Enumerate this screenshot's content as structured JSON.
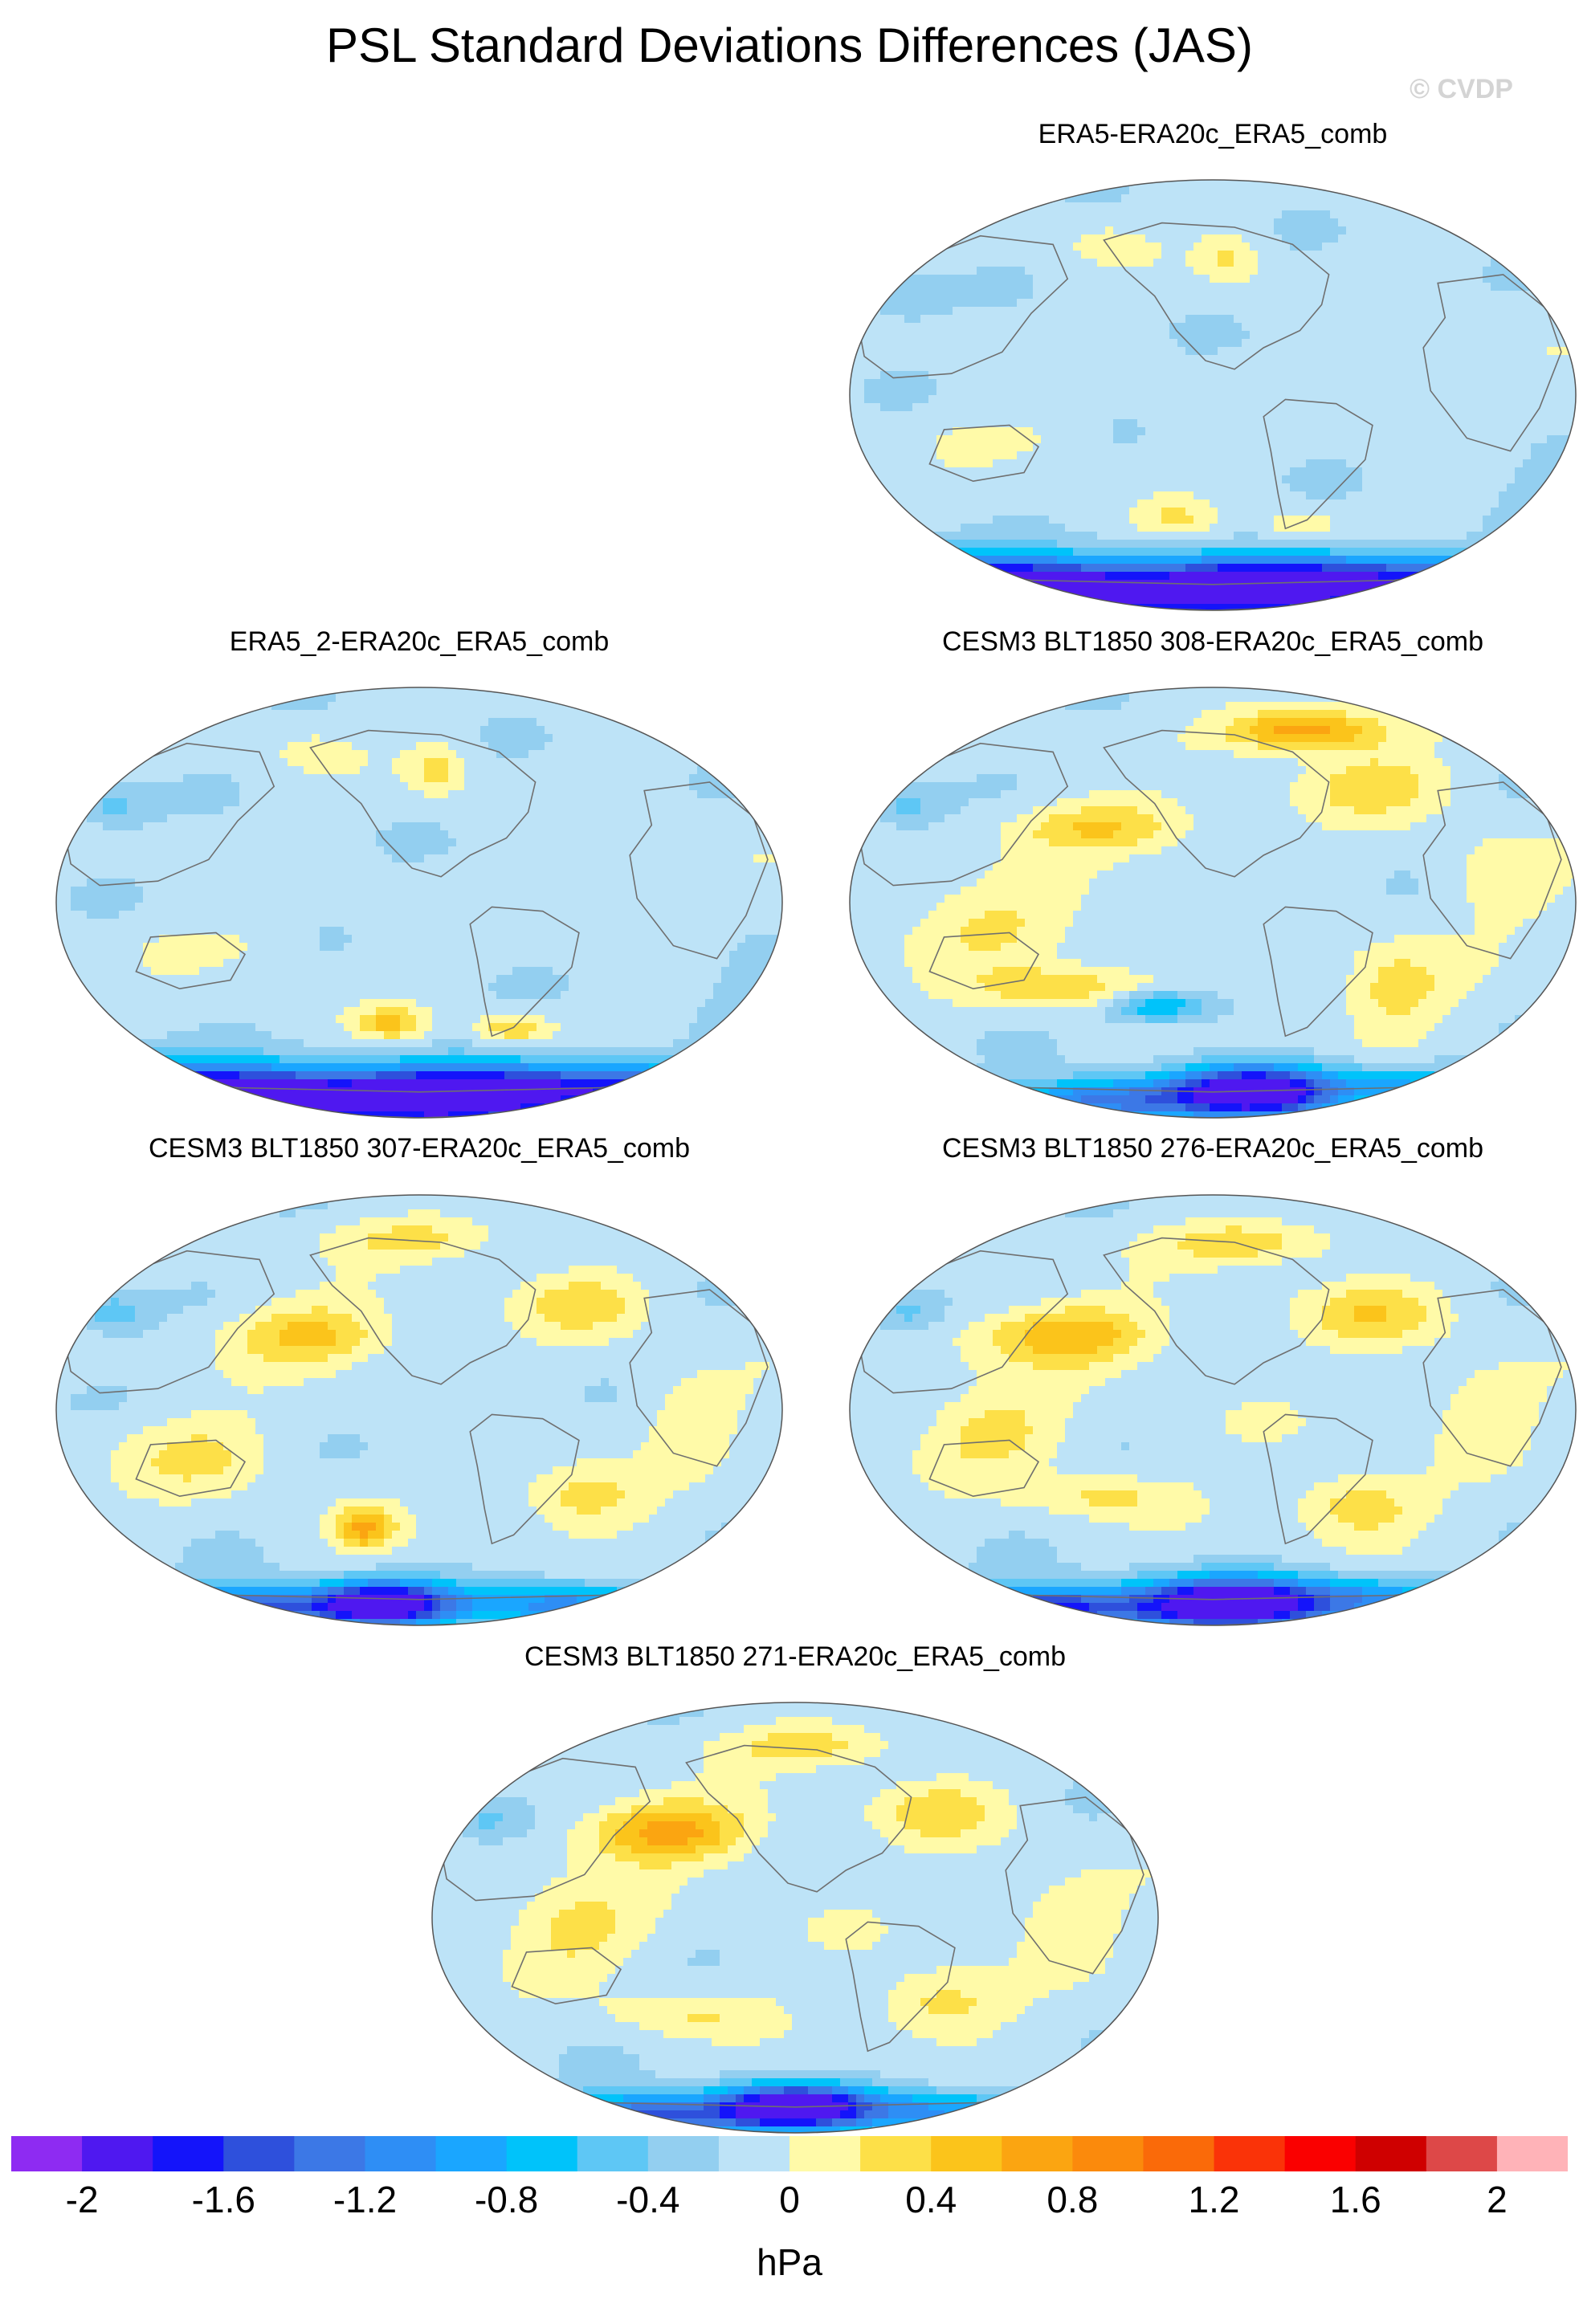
{
  "title": "PSL Standard Deviations Differences (JAS)",
  "watermark": "© CVDP",
  "chart_data": {
    "type": "heatmap",
    "projection": "global-robinson-map",
    "variable": "PSL standard deviation difference",
    "season": "JAS",
    "units": "hPa",
    "panels": [
      {
        "title": "ERA5-ERA20c_ERA5_comb",
        "min": -2.0,
        "max": 0.6
      },
      {
        "title": "ERA5_2-ERA20c_ERA5_comb",
        "min": -2.0,
        "max": 0.6
      },
      {
        "title": "CESM3 BLT1850 308-ERA20c_ERA5_comb",
        "min": -2.0,
        "max": 1.2
      },
      {
        "title": "CESM3 BLT1850 307-ERA20c_ERA5_comb",
        "min": -2.0,
        "max": 0.8
      },
      {
        "title": "CESM3 BLT1850 276-ERA20c_ERA5_comb",
        "min": -2.0,
        "max": 0.8
      },
      {
        "title": "CESM3 BLT1850 271-ERA20c_ERA5_comb",
        "min": -2.0,
        "max": 0.8
      }
    ],
    "colorbar": {
      "levels": [
        -2.2,
        -2,
        -1.8,
        -1.6,
        -1.4,
        -1.2,
        -1,
        -0.8,
        -0.6,
        -0.4,
        -0.2,
        0,
        0.2,
        0.4,
        0.6,
        0.8,
        1,
        1.2,
        1.4,
        1.6,
        1.8,
        2,
        2.2
      ],
      "colors": [
        "#8e2bf2",
        "#4f18f0",
        "#1414fa",
        "#2e50dc",
        "#3c78e6",
        "#2e8ef5",
        "#1aa6ff",
        "#00c3fa",
        "#5ec7f5",
        "#93cff0",
        "#bde3f7",
        "#fffaa8",
        "#fde048",
        "#fbc41b",
        "#fba511",
        "#fb8a0c",
        "#fa6a09",
        "#fa3308",
        "#fa0000",
        "#cf0000",
        "#dd4848",
        "#ffb3b8"
      ],
      "tick_labels": [
        "-2",
        "-1.6",
        "-1.2",
        "-0.8",
        "-0.4",
        "0",
        "0.4",
        "0.8",
        "1.2",
        "1.6",
        "2"
      ],
      "tick_values": [
        -2,
        -1.6,
        -1.2,
        -0.8,
        -0.4,
        0,
        0.4,
        0.8,
        1.2,
        1.6,
        2
      ],
      "units_label": "hPa"
    }
  }
}
